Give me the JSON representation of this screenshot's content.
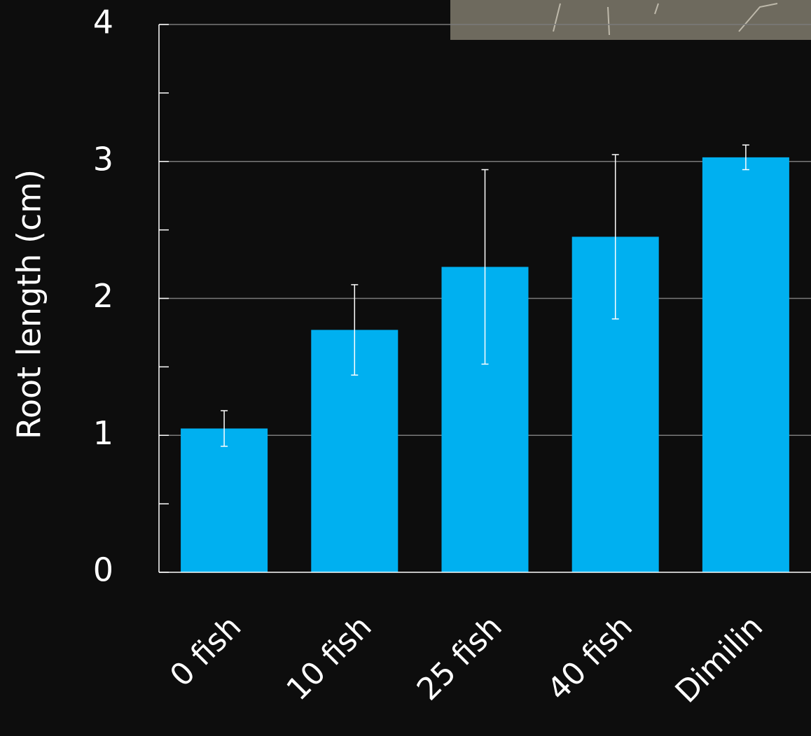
{
  "chart_data": {
    "type": "bar",
    "y_label": "Root length (cm)",
    "categories": [
      "0 fish",
      "10 fish",
      "25 fish",
      "40 fish",
      "Dimilin"
    ],
    "values": [
      1.05,
      1.77,
      2.23,
      2.45,
      3.03
    ],
    "errors": [
      0.13,
      0.33,
      0.71,
      0.6,
      0.09
    ],
    "color": "#00b0f0",
    "ylim": [
      0,
      4
    ],
    "yticks": [
      0,
      1,
      2,
      3,
      4
    ],
    "minor_yticks": [
      0.5,
      1.5,
      2.5,
      3.5
    ],
    "grid": true
  }
}
